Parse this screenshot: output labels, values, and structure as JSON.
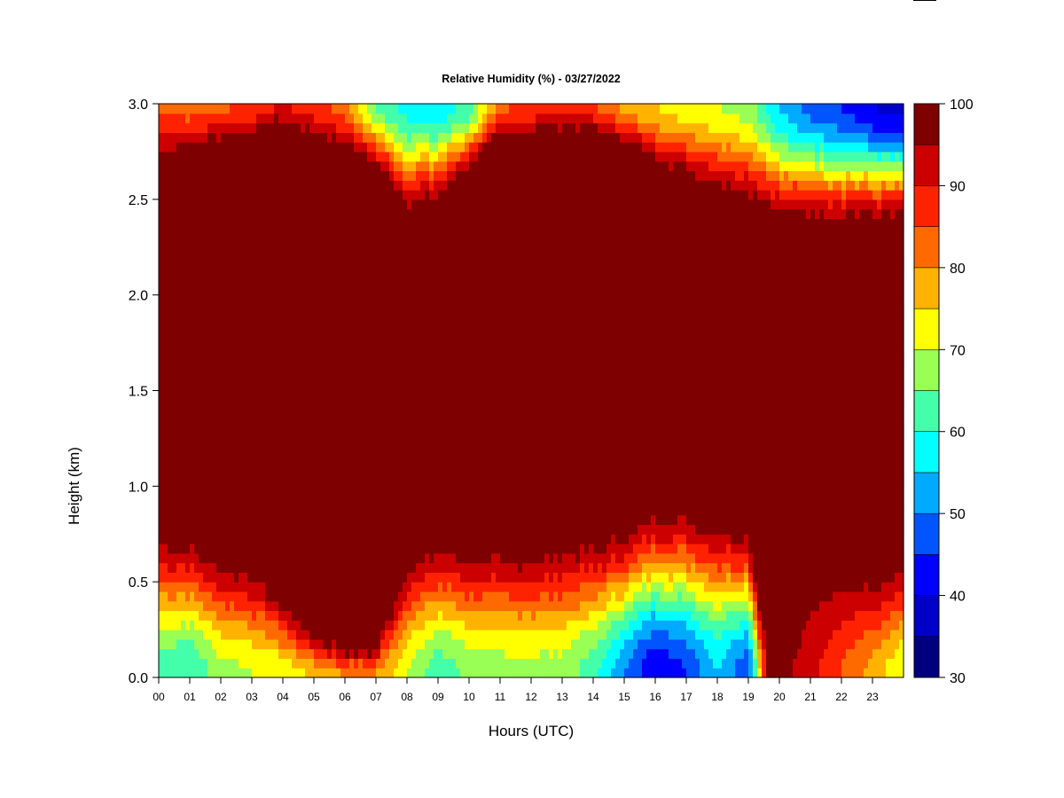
{
  "chart_data": {
    "type": "heatmap",
    "title": "Relative Humidity (%) - 03/27/2022",
    "xlabel": "Hours (UTC)",
    "ylabel": "Height (km)",
    "xlim": [
      0,
      24
    ],
    "ylim": [
      0.0,
      3.0
    ],
    "x_ticks": [
      {
        "value": 0,
        "label": "00"
      },
      {
        "value": 1,
        "label": "01"
      },
      {
        "value": 2,
        "label": "02"
      },
      {
        "value": 3,
        "label": "03"
      },
      {
        "value": 4,
        "label": "04"
      },
      {
        "value": 5,
        "label": "05"
      },
      {
        "value": 6,
        "label": "06"
      },
      {
        "value": 7,
        "label": "07"
      },
      {
        "value": 8,
        "label": "08"
      },
      {
        "value": 9,
        "label": "09"
      },
      {
        "value": 10,
        "label": "10"
      },
      {
        "value": 11,
        "label": "11"
      },
      {
        "value": 12,
        "label": "12"
      },
      {
        "value": 13,
        "label": "13"
      },
      {
        "value": 14,
        "label": "14"
      },
      {
        "value": 15,
        "label": "15"
      },
      {
        "value": 16,
        "label": "16"
      },
      {
        "value": 17,
        "label": "17"
      },
      {
        "value": 18,
        "label": "18"
      },
      {
        "value": 19,
        "label": "19"
      },
      {
        "value": 20,
        "label": "20"
      },
      {
        "value": 21,
        "label": "21"
      },
      {
        "value": 22,
        "label": "22"
      },
      {
        "value": 23,
        "label": "23"
      }
    ],
    "y_ticks": [
      {
        "value": 0.0,
        "label": "0.0"
      },
      {
        "value": 0.5,
        "label": "0.5"
      },
      {
        "value": 1.0,
        "label": "1.0"
      },
      {
        "value": 1.5,
        "label": "1.5"
      },
      {
        "value": 2.0,
        "label": "2.0"
      },
      {
        "value": 2.5,
        "label": "2.5"
      },
      {
        "value": 3.0,
        "label": "3.0"
      }
    ],
    "colorbar": {
      "range": [
        30,
        100
      ],
      "ticks": [
        {
          "value": 30,
          "label": "30"
        },
        {
          "value": 40,
          "label": "40"
        },
        {
          "value": 50,
          "label": "50"
        },
        {
          "value": 60,
          "label": "60"
        },
        {
          "value": 70,
          "label": "70"
        },
        {
          "value": 80,
          "label": "80"
        },
        {
          "value": 90,
          "label": "90"
        },
        {
          "value": 100,
          "label": "100"
        }
      ],
      "bins": [
        {
          "min": 30,
          "max": 35,
          "color": "#00007F"
        },
        {
          "min": 35,
          "max": 40,
          "color": "#0000C8"
        },
        {
          "min": 40,
          "max": 45,
          "color": "#0000FF"
        },
        {
          "min": 45,
          "max": 50,
          "color": "#0055FF"
        },
        {
          "min": 50,
          "max": 55,
          "color": "#00AAFF"
        },
        {
          "min": 55,
          "max": 60,
          "color": "#00FFFF"
        },
        {
          "min": 60,
          "max": 65,
          "color": "#44FFAA"
        },
        {
          "min": 65,
          "max": 70,
          "color": "#99FF55"
        },
        {
          "min": 70,
          "max": 75,
          "color": "#FFFF00"
        },
        {
          "min": 75,
          "max": 80,
          "color": "#FFB300"
        },
        {
          "min": 80,
          "max": 85,
          "color": "#FF6A00"
        },
        {
          "min": 85,
          "max": 90,
          "color": "#FF2200"
        },
        {
          "min": 90,
          "max": 95,
          "color": "#CC0000"
        },
        {
          "min": 95,
          "max": 100,
          "color": "#7F0000"
        }
      ]
    },
    "z_profile": {
      "rh_min": 30,
      "rh_max": 100,
      "hours": [
        0,
        1,
        2,
        3,
        4,
        5,
        6,
        7,
        8,
        9,
        10,
        11,
        12,
        13,
        14,
        15,
        16,
        17,
        18,
        19,
        19.6,
        20,
        21,
        22,
        23,
        24
      ],
      "surface_rh": [
        62,
        60,
        68,
        70,
        72,
        76,
        80,
        80,
        70,
        62,
        66,
        68,
        68,
        68,
        62,
        50,
        40,
        45,
        55,
        45,
        95,
        97,
        92,
        85,
        78,
        70
      ],
      "lower_transition_km": [
        0.9,
        0.85,
        0.75,
        0.7,
        0.5,
        0.3,
        0.2,
        0.2,
        0.75,
        0.85,
        0.8,
        0.8,
        0.8,
        0.85,
        0.85,
        0.9,
        1.0,
        1.0,
        0.95,
        0.9,
        0.3,
        0.15,
        0.8,
        0.75,
        0.65,
        0.75
      ],
      "upper_transition_km": [
        2.6,
        2.7,
        2.75,
        2.8,
        2.85,
        2.75,
        2.7,
        2.6,
        2.35,
        2.4,
        2.6,
        2.75,
        2.8,
        2.8,
        2.8,
        2.75,
        2.6,
        2.55,
        2.45,
        2.4,
        2.35,
        2.3,
        2.3,
        2.3,
        2.3,
        2.3
      ],
      "top_rh": [
        85,
        82,
        84,
        86,
        90,
        88,
        82,
        65,
        58,
        56,
        62,
        84,
        86,
        88,
        85,
        78,
        75,
        72,
        70,
        68,
        60,
        55,
        48,
        45,
        40,
        38
      ]
    }
  }
}
